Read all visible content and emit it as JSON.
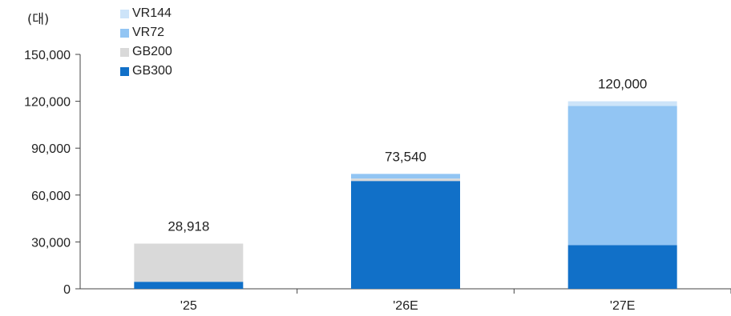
{
  "unit_label": "(대)",
  "chart_data": {
    "type": "bar",
    "stacked": true,
    "categories": [
      "'25",
      "'26E",
      "'27E"
    ],
    "series": [
      {
        "name": "GB300",
        "color": "#1170c8",
        "values": [
          4500,
          69000,
          28000
        ]
      },
      {
        "name": "GB200",
        "color": "#d9d9d9",
        "values": [
          24418,
          1540,
          0
        ]
      },
      {
        "name": "VR72",
        "color": "#92c5f3",
        "values": [
          0,
          3000,
          89000
        ]
      },
      {
        "name": "VR144",
        "color": "#cde4f9",
        "values": [
          0,
          0,
          3000
        ]
      }
    ],
    "totals": [
      "28,918",
      "73,540",
      "120,000"
    ],
    "yticks": [
      "0",
      "30,000",
      "60,000",
      "90,000",
      "120,000",
      "150,000"
    ],
    "ylim": [
      0,
      150000
    ],
    "legend_order": [
      "VR144",
      "VR72",
      "GB200",
      "GB300"
    ],
    "legend_position": "top-left",
    "grid": false
  }
}
